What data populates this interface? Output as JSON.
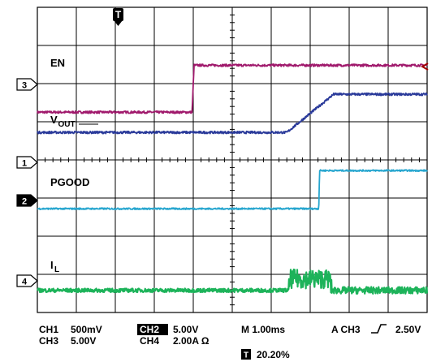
{
  "chart_data": {
    "type": "line",
    "title": "",
    "xlabel": "",
    "ylabel": "",
    "grid": true,
    "xlim_div": [
      0,
      10
    ],
    "ylim_div": [
      0,
      8
    ],
    "time_per_div_ms": 1.0,
    "trigger_marker": "T",
    "trace_labels": {
      "en": "EN",
      "vout_main": "V",
      "vout_sub": "OUT",
      "pgood": "PGOOD",
      "il_main": "I",
      "il_sub": "L"
    },
    "channel_markers": [
      "3",
      "1",
      "2",
      "4"
    ],
    "settings": {
      "ch1": "CH1",
      "ch1_scale": "500mV",
      "ch2": "CH2",
      "ch2_scale": "5.00V",
      "ch3": "CH3",
      "ch3_scale": "5.00V",
      "ch4": "CH4",
      "ch4_scale": "2.00A Ω",
      "timebase": "M 1.00ms",
      "trigger_source": "A CH3",
      "trigger_level": "2.50V",
      "trigger_position_icon": "T",
      "trigger_position": "20.20%"
    },
    "series": [
      {
        "key": "en",
        "name": "EN",
        "color": "#a0196c",
        "x_div": [
          0,
          3.97,
          4.02,
          10
        ],
        "y_div": [
          5.25,
          5.25,
          6.48,
          6.48
        ],
        "noise": 0.03
      },
      {
        "key": "vout",
        "name": "VOUT",
        "color": "#2a3a9a",
        "x_div": [
          0,
          6.4,
          7.6,
          10
        ],
        "y_div": [
          4.72,
          4.72,
          5.72,
          5.72
        ],
        "noise": 0.03
      },
      {
        "key": "pgood",
        "name": "PGOOD",
        "color": "#27a6cf",
        "x_div": [
          0,
          7.22,
          7.24,
          10
        ],
        "y_div": [
          2.72,
          2.72,
          3.72,
          3.72
        ],
        "noise": 0.02
      },
      {
        "key": "il",
        "name": "IL",
        "color": "#1db35a",
        "x_div": [
          0,
          6.45,
          6.48,
          7.5,
          7.55,
          10
        ],
        "y_div": [
          0.58,
          0.58,
          0.88,
          0.88,
          0.58,
          0.58
        ],
        "noise": 0.05
      }
    ]
  }
}
